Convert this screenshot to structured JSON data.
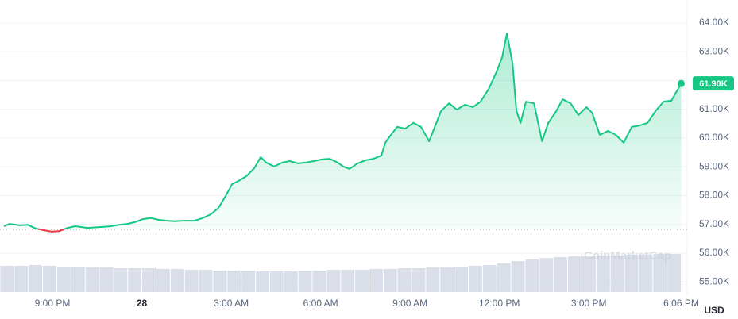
{
  "chart_data": {
    "type": "line",
    "series": [
      {
        "name": "Price",
        "color": "#16c784",
        "down_color": "#ea3943",
        "x": [
          -4.63,
          -4.44,
          -4.09,
          -3.83,
          -3.56,
          -3.29,
          -3.03,
          -2.76,
          -2.49,
          -2.23,
          -1.83,
          -1.43,
          -1.03,
          -0.76,
          -0.49,
          -0.23,
          0.04,
          0.31,
          0.57,
          0.84,
          1.11,
          1.37,
          1.77,
          2.04,
          2.31,
          2.57,
          2.84,
          3.03,
          3.24,
          3.51,
          3.77,
          3.99,
          4.17,
          4.44,
          4.71,
          4.97,
          5.24,
          5.51,
          5.77,
          6.04,
          6.31,
          6.57,
          6.76,
          6.97,
          7.24,
          7.51,
          7.77,
          8.04,
          8.17,
          8.36,
          8.57,
          8.84,
          9.11,
          9.37,
          9.64,
          9.85,
          10.04,
          10.31,
          10.57,
          10.84,
          11.11,
          11.37,
          11.64,
          11.91,
          12.09,
          12.25,
          12.44,
          12.57,
          12.71,
          12.89,
          13.16,
          13.43,
          13.64,
          13.91,
          14.12,
          14.39,
          14.65,
          14.92,
          15.11,
          15.37,
          15.64,
          15.91,
          16.17,
          16.44,
          16.71,
          16.97,
          17.24,
          17.51,
          17.77,
          18.1
        ],
        "values": [
          56940,
          57020,
          56970,
          56990,
          56860,
          56800,
          56750,
          56770,
          56880,
          56940,
          56880,
          56910,
          56940,
          56990,
          57020,
          57080,
          57190,
          57220,
          57160,
          57130,
          57110,
          57130,
          57130,
          57220,
          57350,
          57570,
          58040,
          58400,
          58510,
          58680,
          58950,
          59340,
          59150,
          59010,
          59150,
          59200,
          59120,
          59150,
          59200,
          59260,
          59280,
          59150,
          59010,
          58930,
          59120,
          59230,
          59280,
          59390,
          59840,
          60110,
          60390,
          60330,
          60530,
          60390,
          59890,
          60440,
          60940,
          61210,
          60990,
          61160,
          61080,
          61270,
          61710,
          62320,
          62810,
          63640,
          62590,
          60940,
          60530,
          61270,
          61210,
          59890,
          60530,
          60940,
          61350,
          61210,
          60800,
          61080,
          60880,
          60110,
          60250,
          60110,
          59840,
          60390,
          60440,
          60530,
          60940,
          61270,
          61300,
          61900
        ]
      }
    ],
    "baseline": 56830,
    "current_price": {
      "value": 61900,
      "label": "61.90K"
    },
    "volume": {
      "color": "#cfd6e4",
      "vlim": [
        0,
        100
      ],
      "values": [
        33,
        33,
        34,
        33,
        32,
        32,
        31,
        31,
        30,
        30,
        30,
        29,
        29,
        28,
        28,
        27,
        27,
        27,
        26,
        26,
        26,
        27,
        27,
        28,
        28,
        28,
        29,
        29,
        30,
        30,
        31,
        31,
        32,
        33,
        34,
        36,
        39,
        41,
        43,
        44,
        45,
        45,
        46,
        46,
        47,
        47,
        48,
        48
      ]
    },
    "xlim": [
      -4.76,
      18.3
    ],
    "xticks": [
      {
        "value": -3,
        "label": "9:00 PM"
      },
      {
        "value": 0,
        "label": "28"
      },
      {
        "value": 3,
        "label": "3:00 AM"
      },
      {
        "value": 6,
        "label": "6:00 AM"
      },
      {
        "value": 9,
        "label": "9:00 AM"
      },
      {
        "value": 12,
        "label": "12:00 PM"
      },
      {
        "value": 15,
        "label": "3:00 PM"
      },
      {
        "value": 18.1,
        "label": "6:06 PM"
      }
    ],
    "ylim": [
      54650,
      64800
    ],
    "yticks": [
      {
        "value": 55000,
        "label": "55.00K"
      },
      {
        "value": 56000,
        "label": "56.00K"
      },
      {
        "value": 57000,
        "label": "57.00K"
      },
      {
        "value": 58000,
        "label": "58.00K"
      },
      {
        "value": 59000,
        "label": "59.00K"
      },
      {
        "value": 60000,
        "label": "60.00K"
      },
      {
        "value": 61000,
        "label": "61.00K"
      },
      {
        "value": 62000,
        "label": "62.00K"
      },
      {
        "value": 63000,
        "label": "63.00K"
      },
      {
        "value": 64000,
        "label": "64.00K"
      }
    ],
    "grid": true,
    "currency": "USD",
    "watermark": "CoinMarketCap"
  }
}
